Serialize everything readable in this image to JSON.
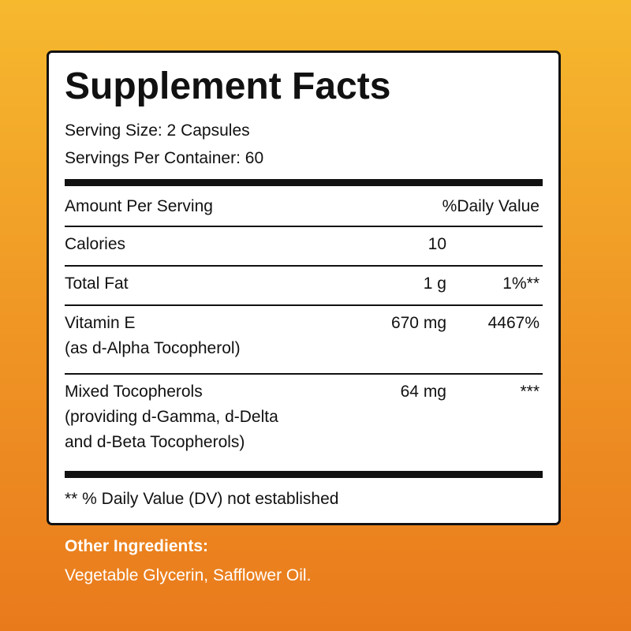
{
  "panel": {
    "title": "Supplement Facts",
    "serving_size": "Serving Size: 2 Capsules",
    "servings_per_container": "Servings Per Container: 60",
    "header": {
      "amount": "Amount Per Serving",
      "dv": "%Daily Value"
    },
    "rows": [
      {
        "name": [
          "Calories"
        ],
        "amount": "10"
      },
      {
        "name": [
          "Total Fat"
        ],
        "amount": "1 g",
        "dv": "1%**"
      },
      {
        "name": [
          "Vitamin E",
          "(as d-Alpha Tocopherol)"
        ],
        "amount": "670 mg",
        "dv": "4467%"
      },
      {
        "name": [
          "Mixed Tocopherols",
          "(providing d-Gamma, d-Delta",
          "and d-Beta Tocopherols)"
        ],
        "amount": "64 mg",
        "dv": "***"
      }
    ],
    "footnote": "** % Daily Value (DV) not established"
  },
  "other_ingredients": {
    "title": "Other Ingredients:",
    "text": "Vegetable Glycerin, Safflower Oil."
  }
}
